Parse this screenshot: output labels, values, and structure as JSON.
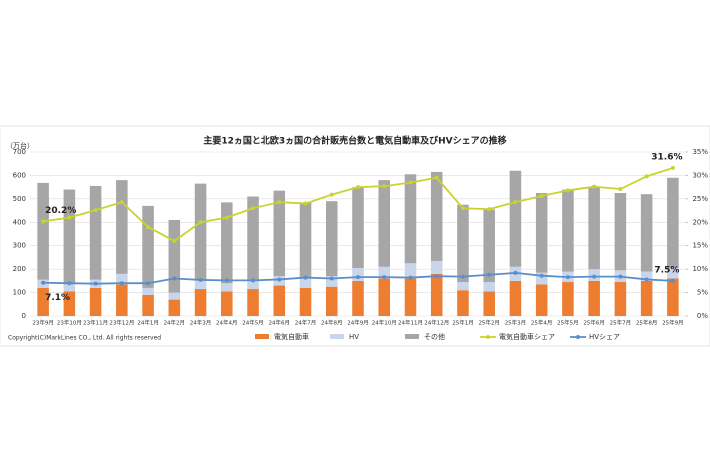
{
  "chart_data": {
    "type": "bar",
    "stacked": true,
    "title": "主要12ヵ国と北欧3ヵ国の合計販売台数と電気自動車及びHVシェアの推移",
    "y_label": "（万台）",
    "copyright": "Copyright(C)MarkLines CO., Ltd. All rights reserved",
    "categories": [
      "23年9月",
      "23年10月",
      "23年11月",
      "23年12月",
      "24年1月",
      "24年2月",
      "24年3月",
      "24年4月",
      "24年5月",
      "24年6月",
      "24年7月",
      "24年8月",
      "24年9月",
      "24年10月",
      "24年11月",
      "24年12月",
      "25年1月",
      "25年2月",
      "25年3月",
      "25年4月",
      "25年5月",
      "25年6月",
      "25年7月",
      "25年8月",
      "25年9月"
    ],
    "series": [
      {
        "name": "電気自動車",
        "type": "bar",
        "color": "#ed7d31",
        "values": [
          120,
          105,
          120,
          135,
          90,
          70,
          115,
          105,
          115,
          130,
          120,
          125,
          150,
          160,
          160,
          180,
          110,
          105,
          150,
          135,
          145,
          150,
          145,
          150,
          160
        ]
      },
      {
        "name": "HV",
        "type": "bar",
        "color": "#c9d5ea",
        "values": [
          35,
          30,
          35,
          45,
          30,
          30,
          40,
          35,
          40,
          40,
          45,
          45,
          55,
          50,
          65,
          55,
          35,
          40,
          60,
          50,
          45,
          50,
          50,
          40,
          45
        ]
      },
      {
        "name": "その他",
        "type": "bar",
        "color": "#a6a6a6",
        "values": [
          413,
          405,
          400,
          400,
          350,
          310,
          410,
          345,
          355,
          365,
          320,
          320,
          345,
          370,
          380,
          380,
          330,
          310,
          410,
          340,
          350,
          350,
          330,
          330,
          385
        ]
      },
      {
        "name": "電気自動車シェア",
        "type": "line",
        "axis": "y2",
        "color": "#c8d42e",
        "values": [
          20.2,
          21,
          22.6,
          24.3,
          19,
          16,
          20,
          21,
          23,
          24.3,
          24,
          25.9,
          27.5,
          27.7,
          28.5,
          29.5,
          23,
          22.8,
          24.3,
          25.6,
          26.8,
          27.6,
          27.1,
          29.8,
          31.6
        ],
        "value_labels": [
          "20.2%",
          null,
          null,
          null,
          null,
          null,
          null,
          null,
          null,
          null,
          null,
          null,
          null,
          null,
          null,
          null,
          null,
          null,
          null,
          null,
          null,
          null,
          null,
          null,
          "31.6%"
        ]
      },
      {
        "name": "HVシェア",
        "type": "line",
        "axis": "y2",
        "color": "#5b8fc9",
        "values": [
          7.1,
          7,
          6.9,
          7,
          7,
          8,
          7.7,
          7.6,
          7.6,
          7.8,
          8.2,
          8,
          8.3,
          8.3,
          8.2,
          8.5,
          8.4,
          8.8,
          9.2,
          8.6,
          8.3,
          8.4,
          8.4,
          7.8,
          7.5
        ],
        "value_labels": [
          "7.1%",
          null,
          null,
          null,
          null,
          null,
          null,
          null,
          null,
          null,
          null,
          null,
          null,
          null,
          null,
          null,
          null,
          null,
          null,
          null,
          null,
          null,
          null,
          null,
          "7.5%"
        ]
      }
    ],
    "ylim": [
      0,
      700
    ],
    "yticks": [
      0,
      100,
      200,
      300,
      400,
      500,
      600,
      700
    ],
    "y2lim": [
      0,
      35
    ],
    "y2ticks": [
      {
        "value": 0,
        "label": "0%"
      },
      {
        "value": 5,
        "label": "5%"
      },
      {
        "value": 10,
        "label": "10%"
      },
      {
        "value": 15,
        "label": "15%"
      },
      {
        "value": 20,
        "label": "20%"
      },
      {
        "value": 25,
        "label": "25%"
      },
      {
        "value": 30,
        "label": "30%"
      },
      {
        "value": 35,
        "label": "35%"
      }
    ],
    "grid": true
  }
}
